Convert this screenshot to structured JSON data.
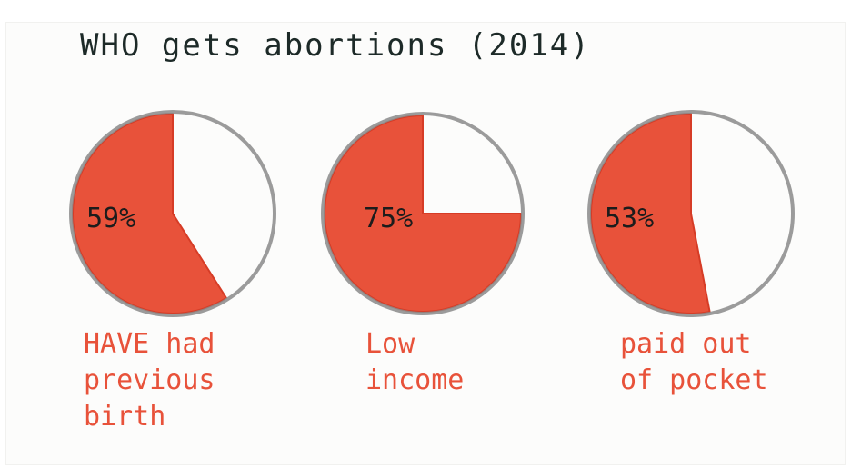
{
  "chart_data": {
    "type": "pie",
    "title": "WHO gets abortions (2014)",
    "slices": [
      {
        "value": 59,
        "label": "59%",
        "caption": [
          "HAVE had",
          "previous",
          "birth"
        ]
      },
      {
        "value": 75,
        "label": "75%",
        "caption": [
          "Low",
          "income"
        ]
      },
      {
        "value": 53,
        "label": "53%",
        "caption": [
          "paid out",
          "of pocket"
        ]
      }
    ],
    "colors": {
      "fill": "#e8523a",
      "outline": "#8a8a8a",
      "title": "#1d2a28",
      "caption": "#e8523a",
      "percent": "#1c1c1c"
    }
  }
}
